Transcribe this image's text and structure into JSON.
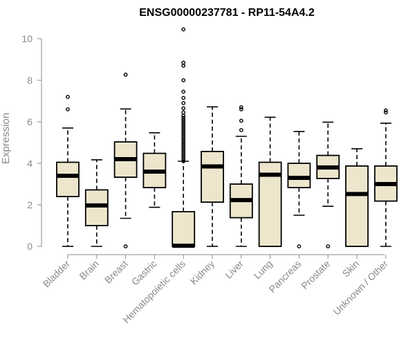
{
  "chart_data": {
    "type": "boxplot",
    "title": "ENSG00000237781 - RP11-54A4.2",
    "xlabel": "",
    "ylabel": "Expression",
    "ylim": [
      0,
      10.4
    ],
    "yticks": [
      0,
      2,
      4,
      6,
      8,
      10
    ],
    "box_color": "#ede6cd",
    "categories": [
      "Bladder",
      "Brain",
      "Breast",
      "Gastric",
      "Hematopoietic cells",
      "Kidney",
      "Liver",
      "Lung",
      "Pancreas",
      "Prostate",
      "Skin",
      "Unknown / Other"
    ],
    "boxes": [
      {
        "name": "Bladder",
        "whislo": 0.0,
        "q1": 2.4,
        "med": 3.4,
        "q3": 4.05,
        "whishi": 5.7,
        "fliers": [
          6.6,
          7.2
        ]
      },
      {
        "name": "Brain",
        "whislo": 0.0,
        "q1": 1.0,
        "med": 1.97,
        "q3": 2.72,
        "whishi": 4.17,
        "fliers": []
      },
      {
        "name": "Breast",
        "whislo": 1.35,
        "q1": 3.33,
        "med": 4.2,
        "q3": 5.03,
        "whishi": 6.62,
        "fliers": [
          0.0,
          8.27
        ]
      },
      {
        "name": "Gastric",
        "whislo": 1.88,
        "q1": 2.83,
        "med": 3.6,
        "q3": 4.48,
        "whishi": 5.47,
        "fliers": []
      },
      {
        "name": "Hematopoietic cells",
        "whislo": 0.0,
        "q1": 0.0,
        "med": 0.03,
        "q3": 1.67,
        "whishi": 4.1,
        "fliers": [
          4.1,
          4.2,
          4.3,
          4.4,
          4.5,
          4.6,
          4.7,
          4.8,
          4.9,
          5.0,
          5.1,
          5.2,
          5.3,
          5.4,
          5.5,
          5.6,
          5.7,
          5.8,
          5.9,
          6.0,
          6.1,
          6.2,
          6.3,
          6.45,
          6.65,
          6.9,
          7.15,
          7.45,
          8.0,
          8.7,
          8.85,
          10.45
        ]
      },
      {
        "name": "Kidney",
        "whislo": 0.0,
        "q1": 2.13,
        "med": 3.85,
        "q3": 4.57,
        "whishi": 6.72,
        "fliers": []
      },
      {
        "name": "Liver",
        "whislo": 0.0,
        "q1": 1.38,
        "med": 2.23,
        "q3": 3.0,
        "whishi": 5.3,
        "fliers": [
          5.6,
          6.05,
          6.6,
          6.7
        ]
      },
      {
        "name": "Lung",
        "whislo": 0.0,
        "q1": 0.0,
        "med": 3.45,
        "q3": 4.05,
        "whishi": 6.22,
        "fliers": []
      },
      {
        "name": "Pancreas",
        "whislo": 1.5,
        "q1": 2.83,
        "med": 3.3,
        "q3": 4.0,
        "whishi": 5.53,
        "fliers": [
          0.0
        ]
      },
      {
        "name": "Prostate",
        "whislo": 1.93,
        "q1": 3.27,
        "med": 3.8,
        "q3": 4.38,
        "whishi": 5.98,
        "fliers": [
          0.0
        ]
      },
      {
        "name": "Skin",
        "whislo": 0.0,
        "q1": 0.0,
        "med": 2.52,
        "q3": 3.87,
        "whishi": 4.7,
        "fliers": []
      },
      {
        "name": "Unknown / Other",
        "whislo": 0.0,
        "q1": 2.18,
        "med": 3.0,
        "q3": 3.87,
        "whishi": 5.93,
        "fliers": [
          6.45,
          6.55
        ]
      }
    ]
  }
}
